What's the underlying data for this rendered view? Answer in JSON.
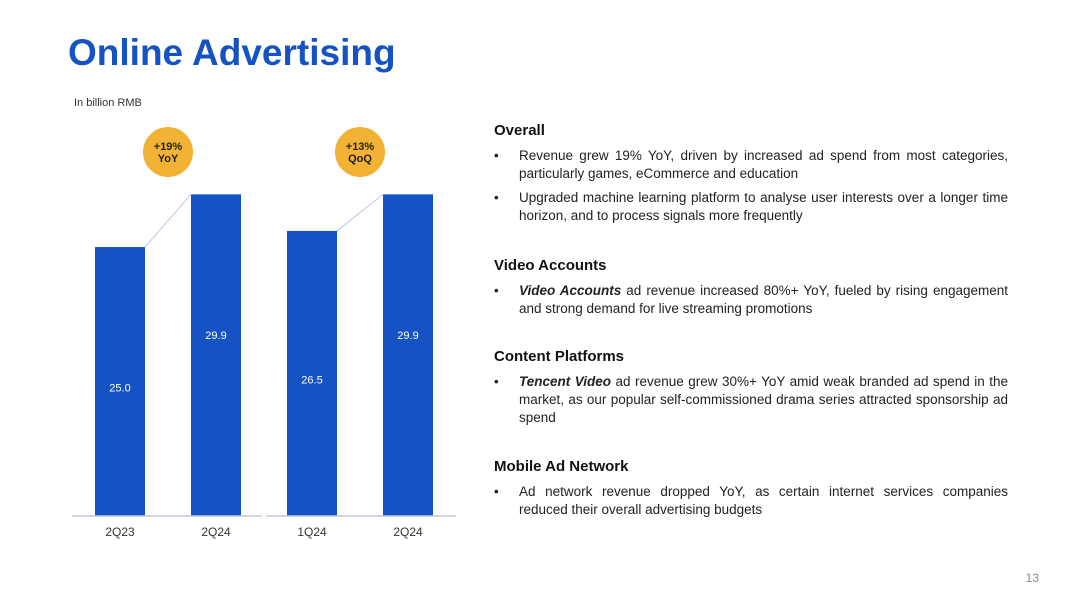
{
  "title": "Online Advertising",
  "unit_label": "In billion RMB",
  "colors": {
    "title": "#1553c4",
    "bar": "#1553c4",
    "badge": "#f2b233",
    "connector": "#b9c7e8",
    "baseline": "#bfc8d6"
  },
  "chart_data": [
    {
      "type": "bar",
      "categories": [
        "2Q23",
        "2Q24"
      ],
      "values": [
        25.0,
        29.9
      ],
      "value_labels": [
        "25.0",
        "29.9"
      ],
      "badge": {
        "line1": "+19%",
        "line2": "YoY"
      },
      "ylim": [
        0,
        33
      ]
    },
    {
      "type": "bar",
      "categories": [
        "1Q24",
        "2Q24"
      ],
      "values": [
        26.5,
        29.9
      ],
      "value_labels": [
        "26.5",
        "29.9"
      ],
      "badge": {
        "line1": "+13%",
        "line2": "QoQ"
      },
      "ylim": [
        0,
        33
      ]
    }
  ],
  "sections": [
    {
      "title": "Overall",
      "bullets": [
        {
          "lead": "",
          "text": "Revenue grew 19% YoY, driven by increased ad spend from most categories, particularly games, eCommerce and education"
        },
        {
          "lead": "",
          "text": "Upgraded machine learning platform to analyse user interests over a longer time horizon, and to process signals more frequently"
        }
      ]
    },
    {
      "title": "Video Accounts",
      "bullets": [
        {
          "lead": "Video Accounts",
          "text": " ad revenue increased 80%+ YoY, fueled by rising engagement and strong demand for live streaming promotions"
        }
      ]
    },
    {
      "title": "Content Platforms",
      "bullets": [
        {
          "lead": "Tencent Video",
          "text": " ad revenue grew 30%+ YoY amid weak branded ad spend in the market, as our popular self-commissioned drama series attracted sponsorship ad spend"
        }
      ]
    },
    {
      "title": "Mobile Ad Network",
      "bullets": [
        {
          "lead": "",
          "text": "Ad network revenue dropped YoY, as certain internet services companies reduced their overall advertising budgets"
        }
      ]
    }
  ],
  "bullet_symbol": "•",
  "page_number": "13"
}
